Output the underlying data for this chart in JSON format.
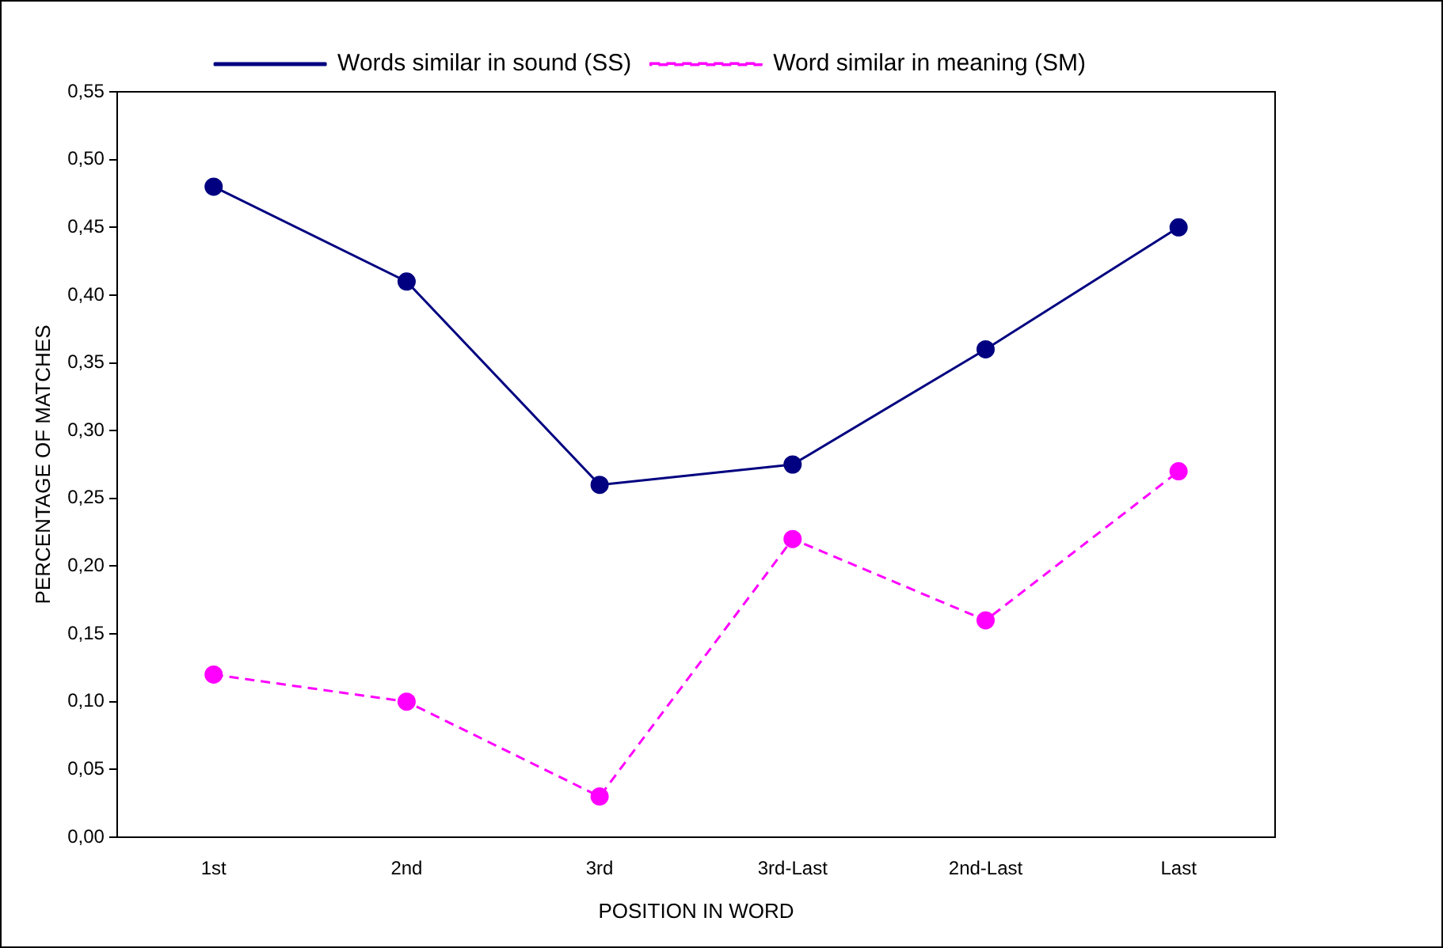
{
  "chart_data": {
    "type": "line",
    "xlabel": "POSITION IN WORD",
    "ylabel": "PERCENTAGE OF MATCHES",
    "categories": [
      "1st",
      "2nd",
      "3rd",
      "3rd-Last",
      "2nd-Last",
      "Last"
    ],
    "series": [
      {
        "name": "Words similar in sound (SS)",
        "color": "#000080",
        "line_style": "solid",
        "values": [
          0.48,
          0.41,
          0.26,
          0.275,
          0.36,
          0.45
        ]
      },
      {
        "name": "Word similar in meaning (SM)",
        "color": "#ff00ff",
        "line_style": "dashed",
        "values": [
          0.12,
          0.1,
          0.03,
          0.22,
          0.16,
          0.27
        ]
      }
    ],
    "ylim": [
      0,
      0.55
    ],
    "yticks": [
      {
        "value": 0,
        "label": "0,00"
      },
      {
        "value": 0.05,
        "label": "0,05"
      },
      {
        "value": 0.1,
        "label": "0,10"
      },
      {
        "value": 0.15,
        "label": "0,15"
      },
      {
        "value": 0.2,
        "label": "0,20"
      },
      {
        "value": 0.25,
        "label": "0,25"
      },
      {
        "value": 0.3,
        "label": "0,30"
      },
      {
        "value": 0.35,
        "label": "0,35"
      },
      {
        "value": 0.4,
        "label": "0,40"
      },
      {
        "value": 0.45,
        "label": "0,45"
      },
      {
        "value": 0.5,
        "label": "0,50"
      },
      {
        "value": 0.55,
        "label": "0,55"
      }
    ],
    "grid": false,
    "legend": "top",
    "marker": "circle"
  }
}
